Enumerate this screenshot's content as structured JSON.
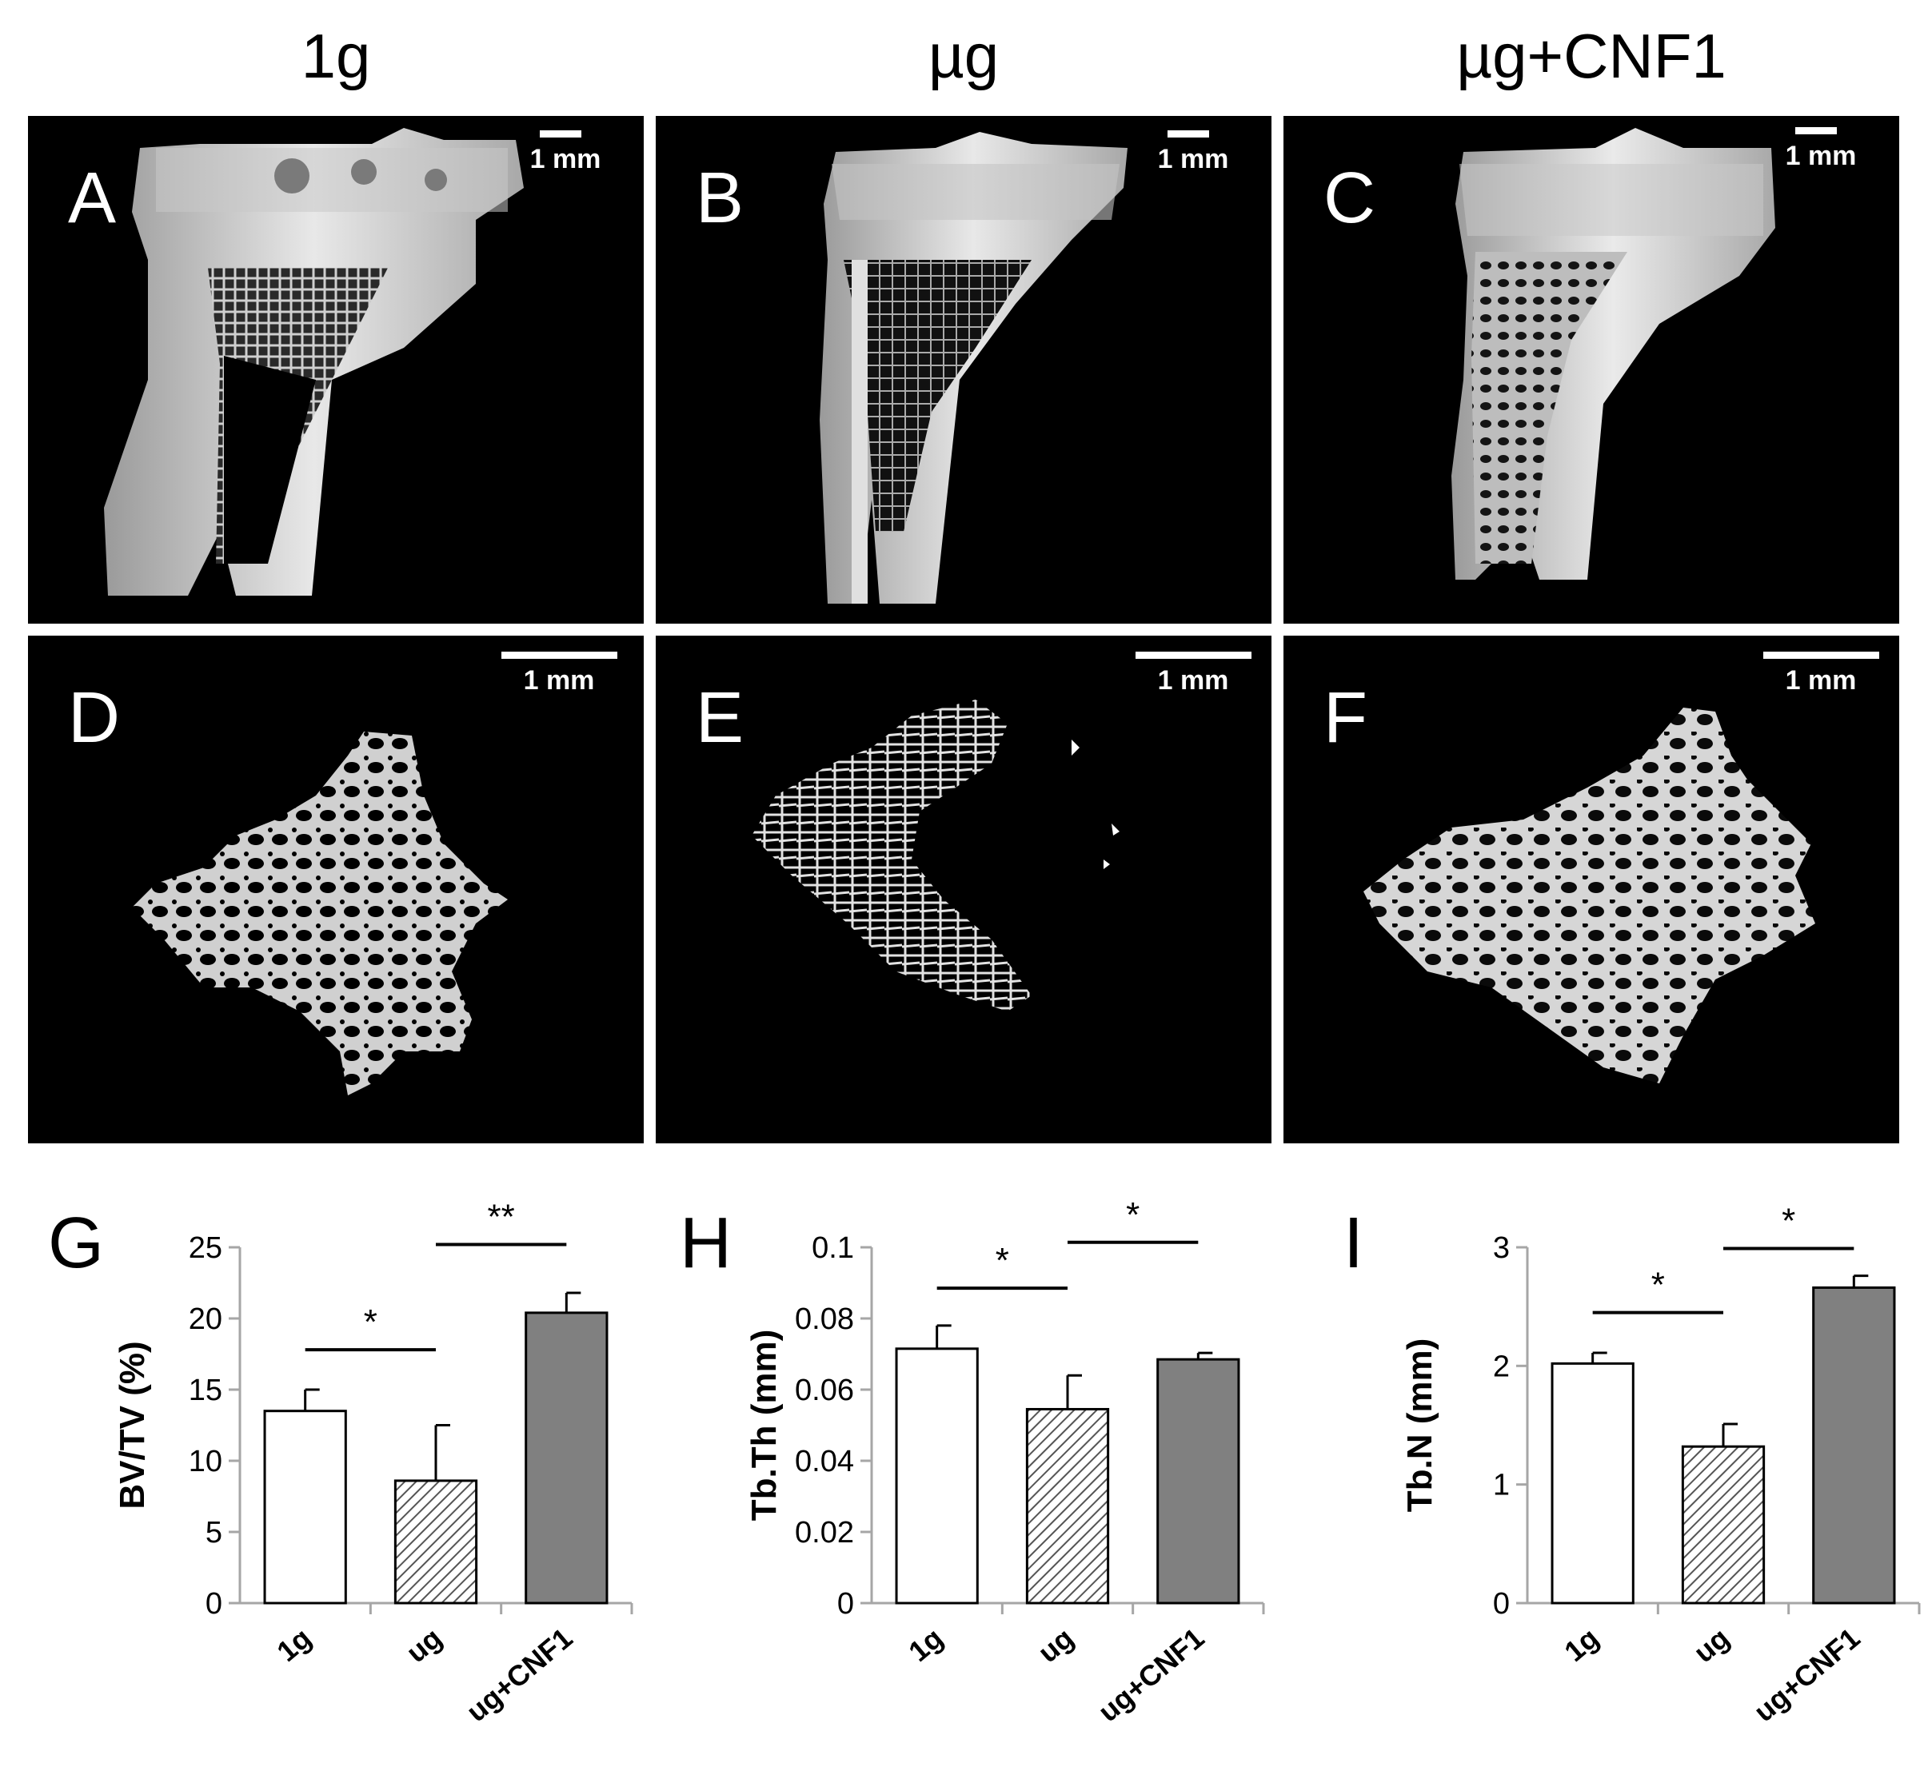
{
  "column_titles": [
    "1g",
    "µg",
    "µg+CNF1"
  ],
  "panels": [
    {
      "letter": "A",
      "scale": "1 mm"
    },
    {
      "letter": "B",
      "scale": "1 mm"
    },
    {
      "letter": "C",
      "scale": "1 mm"
    },
    {
      "letter": "D",
      "scale": "1 mm"
    },
    {
      "letter": "E",
      "scale": "1 mm"
    },
    {
      "letter": "F",
      "scale": "1 mm"
    }
  ],
  "colors": {
    "panel_bg": "#000000",
    "bone": "#d8d8d8",
    "bar_white": "#ffffff",
    "bar_grey": "#808080",
    "axis": "#a6a6a6"
  },
  "chart_data": [
    {
      "panel": "G",
      "type": "bar",
      "categories": [
        "1g",
        "ug",
        "ug+CNF1"
      ],
      "values": [
        13.5,
        8.6,
        20.4
      ],
      "errors": [
        1.5,
        3.9,
        1.4
      ],
      "fills": [
        "white",
        "hatched",
        "grey"
      ],
      "ylabel": "BV/TV (%)",
      "ylim": [
        0,
        25
      ],
      "yticks": [
        "0",
        "5",
        "10",
        "15",
        "20",
        "25"
      ],
      "tickvals": [
        0,
        5,
        10,
        15,
        20,
        25
      ],
      "significance": [
        {
          "from": 0,
          "to": 1,
          "label": "*",
          "y": 17.8
        },
        {
          "from": 1,
          "to": 2,
          "label": "**",
          "y": 25.2
        }
      ]
    },
    {
      "panel": "H",
      "type": "bar",
      "categories": [
        "1g",
        "ug",
        "ug+CNF1"
      ],
      "values": [
        0.0715,
        0.0545,
        0.0685
      ],
      "errors": [
        0.0065,
        0.0095,
        0.0018
      ],
      "fills": [
        "white",
        "hatched",
        "grey"
      ],
      "ylabel": "Tb.Th (mm)",
      "ylim": [
        0,
        0.1
      ],
      "yticks": [
        "0",
        "0.02",
        "0.04",
        "0.06",
        "0.08",
        "0.1"
      ],
      "tickvals": [
        0,
        0.02,
        0.04,
        0.06,
        0.08,
        0.1
      ],
      "significance": [
        {
          "from": 0,
          "to": 1,
          "label": "*",
          "y": 0.0885
        },
        {
          "from": 1,
          "to": 2,
          "label": "*",
          "y": 0.1014
        }
      ]
    },
    {
      "panel": "I",
      "type": "bar",
      "categories": [
        "1g",
        "ug",
        "ug+CNF1"
      ],
      "values": [
        2.02,
        1.32,
        2.66
      ],
      "errors": [
        0.09,
        0.19,
        0.1
      ],
      "fills": [
        "white",
        "hatched",
        "grey"
      ],
      "ylabel": "Tb.N (mm)",
      "ylim": [
        0,
        3
      ],
      "yticks": [
        "0",
        "1",
        "2",
        "3"
      ],
      "tickvals": [
        0,
        1,
        2,
        3
      ],
      "significance": [
        {
          "from": 0,
          "to": 1,
          "label": "*",
          "y": 2.45
        },
        {
          "from": 1,
          "to": 2,
          "label": "*",
          "y": 2.99
        }
      ]
    }
  ]
}
